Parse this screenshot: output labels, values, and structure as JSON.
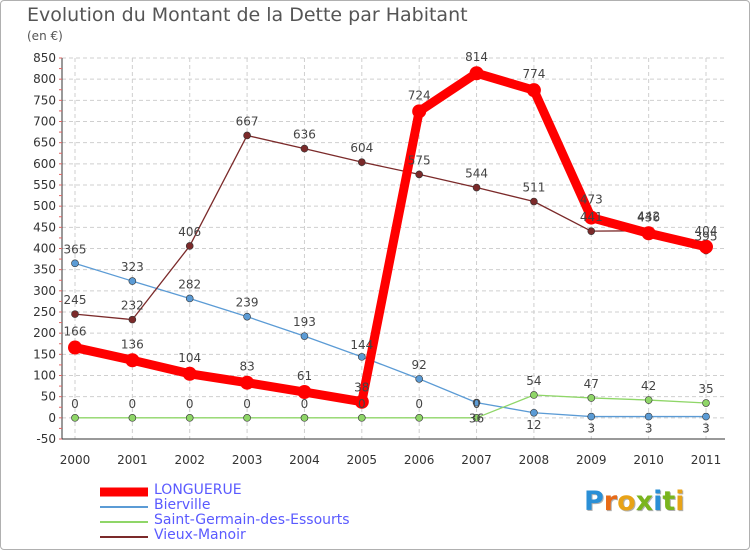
{
  "header": {
    "title": "Evolution du Montant de la Dette par Habitant",
    "unit": "(en €)"
  },
  "logo": {
    "text": "Proxiti",
    "letter_colors": [
      "#2a8fd6",
      "#e86a17",
      "#e8a317",
      "#7ab51d",
      "#2a8fd6",
      "#7ab51d",
      "#e8a317"
    ]
  },
  "chart_data": {
    "type": "line",
    "title": "Evolution du Montant de la Dette par Habitant",
    "ylabel": "(en €)",
    "x": [
      "2000",
      "2001",
      "2002",
      "2003",
      "2004",
      "2005",
      "2006",
      "2007",
      "2008",
      "2009",
      "2010",
      "2011"
    ],
    "yticks": [
      -50,
      0,
      50,
      100,
      150,
      200,
      250,
      300,
      350,
      400,
      450,
      500,
      550,
      600,
      650,
      700,
      750,
      800,
      850
    ],
    "ylim": [
      -50,
      850
    ],
    "grid": true,
    "legend_position": "bottom-left",
    "series": [
      {
        "name": "LONGUERUE",
        "color": "#ff0000",
        "values": [
          166,
          136,
          104,
          83,
          61,
          38,
          724,
          814,
          774,
          473,
          436,
          404
        ],
        "labels": [
          "166",
          "136",
          "104",
          "83",
          "61",
          "38",
          "724",
          "814",
          "774",
          "473",
          "436",
          "404"
        ]
      },
      {
        "name": "Bierville",
        "color": "#5b9bd5",
        "values": [
          365,
          323,
          282,
          239,
          193,
          144,
          92,
          36,
          12,
          3,
          3,
          3
        ],
        "labels": [
          "365",
          "323",
          "282",
          "239",
          "193",
          "144",
          "92",
          "36",
          "12",
          "3",
          "3",
          "3"
        ]
      },
      {
        "name": "Saint-Germain-des-Essourts",
        "color": "#8fd668",
        "values": [
          0,
          0,
          0,
          0,
          0,
          0,
          0,
          0,
          54,
          47,
          42,
          35
        ],
        "labels": [
          "0",
          "0",
          "0",
          "0",
          "0",
          "0",
          "0",
          "0",
          "54",
          "47",
          "42",
          "35"
        ]
      },
      {
        "name": "Vieux-Manoir",
        "color": "#7b2a2a",
        "values": [
          245,
          232,
          406,
          667,
          636,
          604,
          575,
          544,
          511,
          441,
          442,
          395
        ],
        "labels": [
          "245",
          "232",
          "406",
          "667",
          "636",
          "604",
          "575",
          "544",
          "511",
          "441",
          "442",
          "395"
        ]
      }
    ]
  }
}
